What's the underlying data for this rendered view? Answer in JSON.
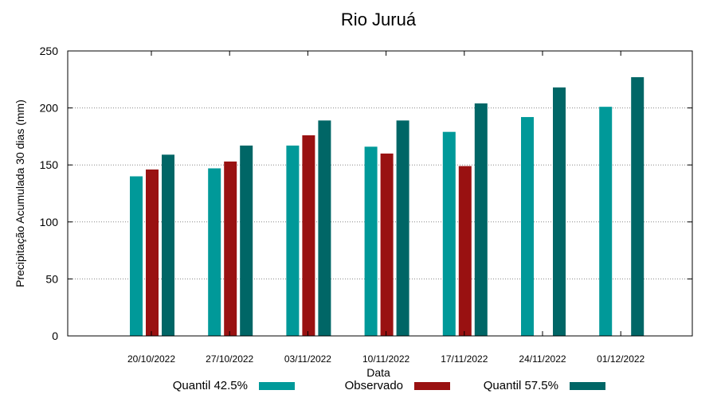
{
  "chart_data": {
    "type": "bar",
    "title": "Rio Juruá",
    "xlabel": "Data",
    "ylabel": "Precipitação Acumulada 30 dias (mm)",
    "ylim": [
      0,
      250
    ],
    "yticks": [
      0,
      50,
      100,
      150,
      200,
      250
    ],
    "grid": "horizontal-dotted",
    "categories": [
      "20/10/2022",
      "27/10/2022",
      "03/11/2022",
      "10/11/2022",
      "17/11/2022",
      "24/11/2022",
      "01/12/2022"
    ],
    "series": [
      {
        "name": "Quantil 42.5%",
        "color": "#009999",
        "values": [
          140,
          147,
          167,
          166,
          179,
          192,
          201
        ]
      },
      {
        "name": "Observado",
        "color": "#991111",
        "values": [
          146,
          153,
          176,
          160,
          149,
          null,
          null
        ]
      },
      {
        "name": "Quantil 57.5%",
        "color": "#006666",
        "values": [
          159,
          167,
          189,
          189,
          204,
          218,
          227
        ]
      }
    ],
    "legend_position": "bottom"
  }
}
